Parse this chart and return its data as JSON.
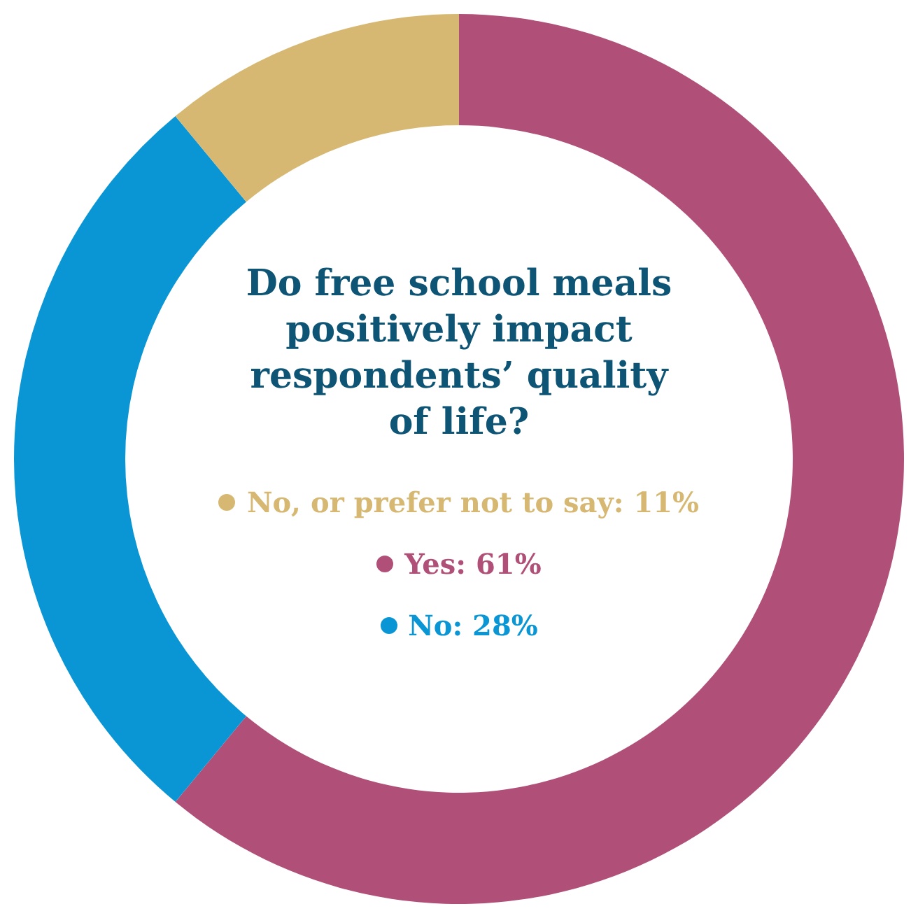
{
  "chart_data": {
    "type": "donut",
    "title": "Do free school meals positively impact respondents’ quality of life?",
    "categories": [
      "Yes",
      "No",
      "No, or prefer not to say"
    ],
    "values": [
      61,
      28,
      11
    ],
    "value_labels": [
      "61%",
      "28%",
      "11%"
    ],
    "colors": [
      "#b05078",
      "#0a96d4",
      "#d6b872"
    ],
    "legend": "center"
  }
}
